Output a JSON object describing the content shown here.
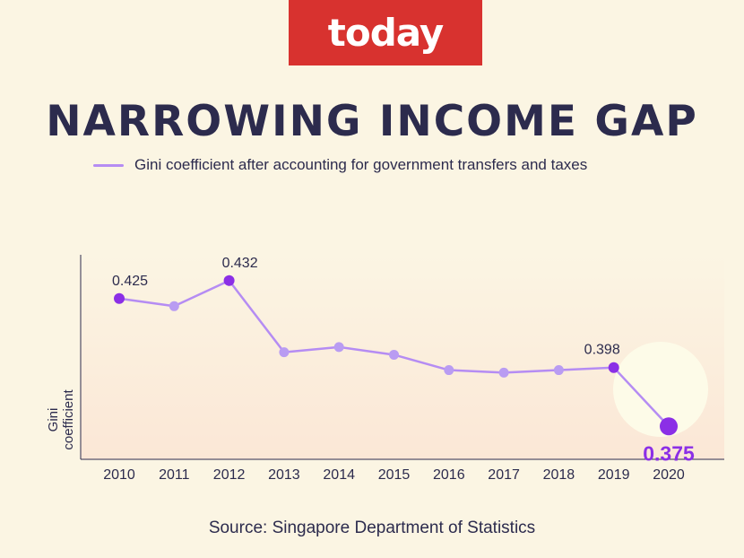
{
  "logo": {
    "text": "today"
  },
  "headline": "NARROWING INCOME GAP",
  "source": "Source: Singapore Department of Statistics",
  "colors": {
    "line": "#b58cf3",
    "point": "#b99cf2",
    "highlight": "#8b2fe6",
    "text": "#2c2b4d",
    "logo_bg": "#d8322f"
  },
  "chart_data": {
    "type": "line",
    "x": [
      "2010",
      "2011",
      "2012",
      "2013",
      "2014",
      "2015",
      "2016",
      "2017",
      "2018",
      "2019",
      "2020"
    ],
    "series": [
      {
        "name": "Gini coefficient after accounting for government transfers and taxes",
        "values": [
          0.425,
          0.422,
          0.432,
          0.404,
          0.406,
          0.403,
          0.397,
          0.396,
          0.397,
          0.398,
          0.375
        ]
      }
    ],
    "data_labels": [
      {
        "index": 0,
        "text": "0.425"
      },
      {
        "index": 2,
        "text": "0.432"
      },
      {
        "index": 9,
        "text": "0.398"
      },
      {
        "index": 10,
        "text": "0.375"
      }
    ],
    "highlighted_points": [
      0,
      2,
      9,
      10
    ],
    "ylabel": "Gini coefficient",
    "ylim": [
      0.36,
      0.44
    ],
    "grid": false,
    "legend": "top-left"
  }
}
